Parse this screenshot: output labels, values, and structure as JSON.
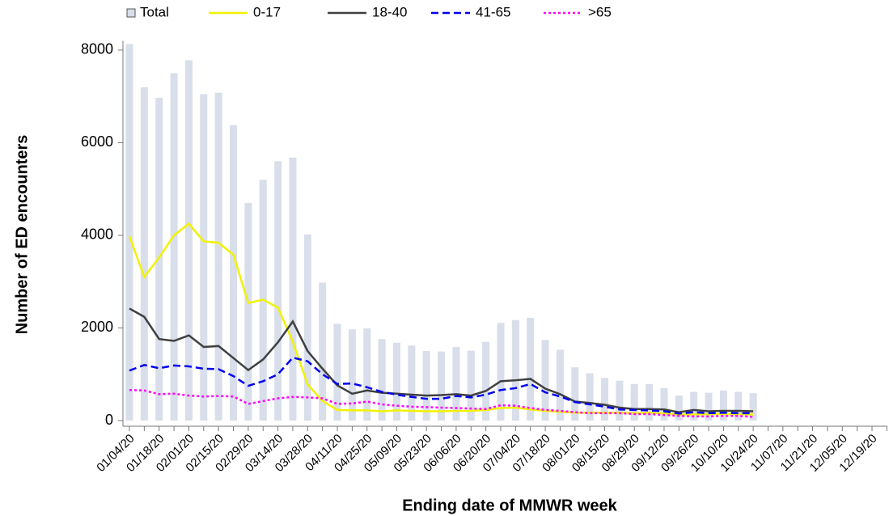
{
  "chart_data": {
    "type": "combo",
    "y_label": "Number of ED encounters",
    "x_label": "Ending date of MMWR week",
    "categories": [
      "01/04/20",
      null,
      "01/18/20",
      null,
      "02/01/20",
      null,
      "02/15/20",
      null,
      "02/29/20",
      null,
      "03/14/20",
      null,
      "03/28/20",
      null,
      "04/11/20",
      null,
      "04/25/20",
      null,
      "05/09/20",
      null,
      "05/23/20",
      null,
      "06/06/20",
      null,
      "06/20/20",
      null,
      "07/04/20",
      null,
      "07/18/20",
      null,
      "08/01/20",
      null,
      "08/15/20",
      null,
      "08/29/20",
      null,
      "09/12/20",
      null,
      "09/26/20",
      null,
      "10/10/20",
      null,
      "10/24/20",
      null,
      "11/07/20",
      null,
      "11/21/20",
      null,
      "12/05/20",
      null,
      "12/19/20",
      null
    ],
    "ylim": [
      0,
      8200
    ],
    "yticks": [
      0,
      2000,
      4000,
      6000,
      8000
    ],
    "series": [
      {
        "name": "Total",
        "type": "bar",
        "color": "#d8deea",
        "values": [
          8130,
          7200,
          6970,
          7500,
          7780,
          7050,
          7080,
          6380,
          4700,
          5200,
          5600,
          5680,
          4020,
          2980,
          2090,
          1970,
          1990,
          1760,
          1680,
          1620,
          1500,
          1490,
          1590,
          1510,
          1700,
          2110,
          2170,
          2220,
          1740,
          1530,
          1150,
          1020,
          920,
          860,
          790,
          790,
          700,
          540,
          620,
          600,
          650,
          620,
          590,
          null,
          null,
          null,
          null,
          null,
          null,
          null,
          null,
          null
        ]
      },
      {
        "name": "0-17",
        "type": "line",
        "dash": "solid",
        "color": "#f2f200",
        "values": [
          3980,
          3100,
          3520,
          4000,
          4250,
          3870,
          3840,
          3580,
          2540,
          2610,
          2440,
          1700,
          780,
          420,
          230,
          220,
          220,
          200,
          220,
          210,
          200,
          200,
          210,
          210,
          230,
          270,
          280,
          240,
          210,
          190,
          170,
          170,
          170,
          170,
          160,
          170,
          150,
          130,
          130,
          140,
          140,
          140,
          130,
          null,
          null,
          null,
          null,
          null,
          null,
          null,
          null,
          null
        ]
      },
      {
        "name": "18-40",
        "type": "line",
        "dash": "solid",
        "color": "#404040",
        "values": [
          2420,
          2240,
          1760,
          1720,
          1840,
          1590,
          1610,
          1350,
          1090,
          1320,
          1690,
          2140,
          1500,
          1120,
          760,
          580,
          650,
          600,
          580,
          560,
          540,
          550,
          570,
          540,
          640,
          850,
          870,
          900,
          690,
          570,
          410,
          380,
          340,
          280,
          250,
          250,
          240,
          180,
          230,
          200,
          210,
          210,
          200,
          null,
          null,
          null,
          null,
          null,
          null,
          null,
          null,
          null
        ]
      },
      {
        "name": "41-65",
        "type": "line",
        "dash": "dashed",
        "color": "#0000ee",
        "values": [
          1080,
          1200,
          1130,
          1190,
          1170,
          1120,
          1110,
          960,
          750,
          850,
          1000,
          1360,
          1280,
          1000,
          790,
          800,
          720,
          620,
          560,
          510,
          470,
          470,
          530,
          500,
          560,
          660,
          700,
          790,
          610,
          520,
          400,
          350,
          300,
          240,
          230,
          220,
          200,
          150,
          180,
          160,
          170,
          160,
          160,
          null,
          null,
          null,
          null,
          null,
          null,
          null,
          null,
          null
        ]
      },
      {
        "name": ">65",
        "type": "line",
        "dash": "dotted",
        "color": "#ff00ff",
        "values": [
          660,
          650,
          570,
          580,
          540,
          520,
          530,
          520,
          360,
          420,
          480,
          510,
          500,
          480,
          360,
          370,
          410,
          350,
          320,
          300,
          290,
          280,
          270,
          260,
          250,
          330,
          320,
          270,
          230,
          210,
          180,
          160,
          160,
          160,
          140,
          140,
          120,
          100,
          90,
          90,
          100,
          100,
          80,
          null,
          null,
          null,
          null,
          null,
          null,
          null,
          null,
          null
        ]
      }
    ]
  }
}
